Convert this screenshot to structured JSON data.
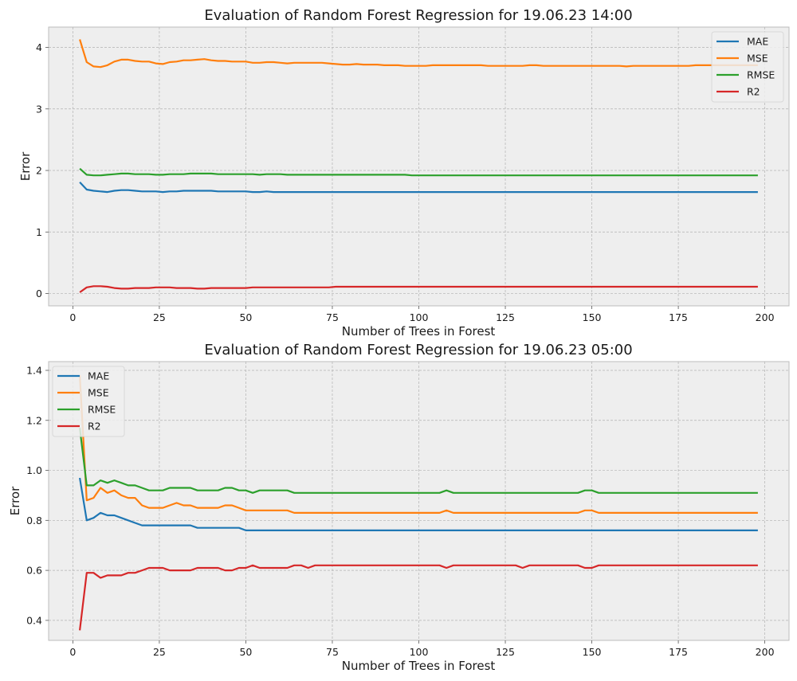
{
  "chart_data": [
    {
      "type": "line",
      "title": "Evaluation of Random Forest Regression for 19.06.23 14:00",
      "xlabel": "Number of Trees in Forest",
      "ylabel": "Error",
      "xlim": [
        -7,
        207
      ],
      "ylim": [
        -0.2,
        4.33
      ],
      "xticks": [
        0,
        25,
        50,
        75,
        100,
        125,
        150,
        175,
        200
      ],
      "yticks": [
        0,
        1,
        2,
        3,
        4
      ],
      "grid": true,
      "legend": "top-right",
      "x": [
        2,
        4,
        6,
        8,
        10,
        12,
        14,
        16,
        18,
        20,
        22,
        24,
        26,
        28,
        30,
        32,
        34,
        36,
        38,
        40,
        42,
        44,
        46,
        48,
        50,
        52,
        54,
        56,
        58,
        60,
        62,
        64,
        66,
        68,
        70,
        72,
        74,
        76,
        78,
        80,
        82,
        84,
        86,
        88,
        90,
        92,
        94,
        96,
        98,
        100,
        102,
        104,
        106,
        108,
        110,
        112,
        114,
        116,
        118,
        120,
        122,
        124,
        126,
        128,
        130,
        132,
        134,
        136,
        138,
        140,
        142,
        144,
        146,
        148,
        150,
        152,
        154,
        156,
        158,
        160,
        162,
        164,
        166,
        168,
        170,
        172,
        174,
        176,
        178,
        180,
        182,
        184,
        186,
        188,
        190,
        192,
        194,
        196,
        198
      ],
      "series": [
        {
          "name": "MAE",
          "color": "#1f77b4",
          "values": [
            1.81,
            1.69,
            1.67,
            1.66,
            1.65,
            1.67,
            1.68,
            1.68,
            1.67,
            1.66,
            1.66,
            1.66,
            1.65,
            1.66,
            1.66,
            1.67,
            1.67,
            1.67,
            1.67,
            1.67,
            1.66,
            1.66,
            1.66,
            1.66,
            1.66,
            1.65,
            1.65,
            1.66,
            1.65,
            1.65,
            1.65,
            1.65,
            1.65,
            1.65,
            1.65,
            1.65,
            1.65,
            1.65,
            1.65,
            1.65,
            1.65,
            1.65,
            1.65,
            1.65,
            1.65,
            1.65,
            1.65,
            1.65,
            1.65,
            1.65,
            1.65,
            1.65,
            1.65,
            1.65,
            1.65,
            1.65,
            1.65,
            1.65,
            1.65,
            1.65,
            1.65,
            1.65,
            1.65,
            1.65,
            1.65,
            1.65,
            1.65,
            1.65,
            1.65,
            1.65,
            1.65,
            1.65,
            1.65,
            1.65,
            1.65,
            1.65,
            1.65,
            1.65,
            1.65,
            1.65,
            1.65,
            1.65,
            1.65,
            1.65,
            1.65,
            1.65,
            1.65,
            1.65,
            1.65,
            1.65,
            1.65,
            1.65,
            1.65,
            1.65,
            1.65,
            1.65,
            1.65,
            1.65,
            1.65
          ]
        },
        {
          "name": "MSE",
          "color": "#ff7f0e",
          "values": [
            4.13,
            3.76,
            3.69,
            3.68,
            3.71,
            3.77,
            3.8,
            3.8,
            3.78,
            3.77,
            3.77,
            3.74,
            3.73,
            3.76,
            3.77,
            3.79,
            3.79,
            3.8,
            3.81,
            3.79,
            3.78,
            3.78,
            3.77,
            3.77,
            3.77,
            3.75,
            3.75,
            3.76,
            3.76,
            3.75,
            3.74,
            3.75,
            3.75,
            3.75,
            3.75,
            3.75,
            3.74,
            3.73,
            3.72,
            3.72,
            3.73,
            3.72,
            3.72,
            3.72,
            3.71,
            3.71,
            3.71,
            3.7,
            3.7,
            3.7,
            3.7,
            3.71,
            3.71,
            3.71,
            3.71,
            3.71,
            3.71,
            3.71,
            3.71,
            3.7,
            3.7,
            3.7,
            3.7,
            3.7,
            3.7,
            3.71,
            3.71,
            3.7,
            3.7,
            3.7,
            3.7,
            3.7,
            3.7,
            3.7,
            3.7,
            3.7,
            3.7,
            3.7,
            3.7,
            3.69,
            3.7,
            3.7,
            3.7,
            3.7,
            3.7,
            3.7,
            3.7,
            3.7,
            3.7,
            3.71,
            3.71,
            3.71,
            3.71,
            3.71,
            3.71,
            3.71,
            3.71,
            3.71,
            3.71
          ]
        },
        {
          "name": "RMSE",
          "color": "#2ca02c",
          "values": [
            2.03,
            1.93,
            1.92,
            1.92,
            1.93,
            1.94,
            1.95,
            1.95,
            1.94,
            1.94,
            1.94,
            1.93,
            1.93,
            1.94,
            1.94,
            1.94,
            1.95,
            1.95,
            1.95,
            1.95,
            1.94,
            1.94,
            1.94,
            1.94,
            1.94,
            1.94,
            1.93,
            1.94,
            1.94,
            1.94,
            1.93,
            1.93,
            1.93,
            1.93,
            1.93,
            1.93,
            1.93,
            1.93,
            1.93,
            1.93,
            1.93,
            1.93,
            1.93,
            1.93,
            1.93,
            1.93,
            1.93,
            1.93,
            1.92,
            1.92,
            1.92,
            1.92,
            1.92,
            1.92,
            1.92,
            1.92,
            1.92,
            1.92,
            1.92,
            1.92,
            1.92,
            1.92,
            1.92,
            1.92,
            1.92,
            1.92,
            1.92,
            1.92,
            1.92,
            1.92,
            1.92,
            1.92,
            1.92,
            1.92,
            1.92,
            1.92,
            1.92,
            1.92,
            1.92,
            1.92,
            1.92,
            1.92,
            1.92,
            1.92,
            1.92,
            1.92,
            1.92,
            1.92,
            1.92,
            1.92,
            1.92,
            1.92,
            1.92,
            1.92,
            1.92,
            1.92,
            1.92,
            1.92,
            1.92
          ]
        },
        {
          "name": "R2",
          "color": "#d62728",
          "values": [
            0.02,
            0.1,
            0.12,
            0.12,
            0.11,
            0.09,
            0.08,
            0.08,
            0.09,
            0.09,
            0.09,
            0.1,
            0.1,
            0.1,
            0.09,
            0.09,
            0.09,
            0.08,
            0.08,
            0.09,
            0.09,
            0.09,
            0.09,
            0.09,
            0.09,
            0.1,
            0.1,
            0.1,
            0.1,
            0.1,
            0.1,
            0.1,
            0.1,
            0.1,
            0.1,
            0.1,
            0.1,
            0.11,
            0.11,
            0.11,
            0.11,
            0.11,
            0.11,
            0.11,
            0.11,
            0.11,
            0.11,
            0.11,
            0.11,
            0.11,
            0.11,
            0.11,
            0.11,
            0.11,
            0.11,
            0.11,
            0.11,
            0.11,
            0.11,
            0.11,
            0.11,
            0.11,
            0.11,
            0.11,
            0.11,
            0.11,
            0.11,
            0.11,
            0.11,
            0.11,
            0.11,
            0.11,
            0.11,
            0.11,
            0.11,
            0.11,
            0.11,
            0.11,
            0.11,
            0.11,
            0.11,
            0.11,
            0.11,
            0.11,
            0.11,
            0.11,
            0.11,
            0.11,
            0.11,
            0.11,
            0.11,
            0.11,
            0.11,
            0.11,
            0.11,
            0.11,
            0.11,
            0.11,
            0.11
          ]
        }
      ]
    },
    {
      "type": "line",
      "title": "Evaluation of Random Forest Regression for 19.06.23 05:00",
      "xlabel": "Number of Trees in Forest",
      "ylabel": "Error",
      "xlim": [
        -7,
        207
      ],
      "ylim": [
        0.32,
        1.435
      ],
      "xticks": [
        0,
        25,
        50,
        75,
        100,
        125,
        150,
        175,
        200
      ],
      "yticks": [
        0.4,
        0.6,
        0.8,
        1.0,
        1.2,
        1.4
      ],
      "ytickLabels": [
        "0.4",
        "0.6",
        "0.8",
        "1.0",
        "1.2",
        "1.4"
      ],
      "grid": true,
      "legend": "top-left",
      "x": [
        2,
        4,
        6,
        8,
        10,
        12,
        14,
        16,
        18,
        20,
        22,
        24,
        26,
        28,
        30,
        32,
        34,
        36,
        38,
        40,
        42,
        44,
        46,
        48,
        50,
        52,
        54,
        56,
        58,
        60,
        62,
        64,
        66,
        68,
        70,
        72,
        74,
        76,
        78,
        80,
        82,
        84,
        86,
        88,
        90,
        92,
        94,
        96,
        98,
        100,
        102,
        104,
        106,
        108,
        110,
        112,
        114,
        116,
        118,
        120,
        122,
        124,
        126,
        128,
        130,
        132,
        134,
        136,
        138,
        140,
        142,
        144,
        146,
        148,
        150,
        152,
        154,
        156,
        158,
        160,
        162,
        164,
        166,
        168,
        170,
        172,
        174,
        176,
        178,
        180,
        182,
        184,
        186,
        188,
        190,
        192,
        194,
        196,
        198
      ],
      "series": [
        {
          "name": "MAE",
          "color": "#1f77b4",
          "values": [
            0.97,
            0.8,
            0.81,
            0.83,
            0.82,
            0.82,
            0.81,
            0.8,
            0.79,
            0.78,
            0.78,
            0.78,
            0.78,
            0.78,
            0.78,
            0.78,
            0.78,
            0.77,
            0.77,
            0.77,
            0.77,
            0.77,
            0.77,
            0.77,
            0.76,
            0.76,
            0.76,
            0.76,
            0.76,
            0.76,
            0.76,
            0.76,
            0.76,
            0.76,
            0.76,
            0.76,
            0.76,
            0.76,
            0.76,
            0.76,
            0.76,
            0.76,
            0.76,
            0.76,
            0.76,
            0.76,
            0.76,
            0.76,
            0.76,
            0.76,
            0.76,
            0.76,
            0.76,
            0.76,
            0.76,
            0.76,
            0.76,
            0.76,
            0.76,
            0.76,
            0.76,
            0.76,
            0.76,
            0.76,
            0.76,
            0.76,
            0.76,
            0.76,
            0.76,
            0.76,
            0.76,
            0.76,
            0.76,
            0.76,
            0.76,
            0.76,
            0.76,
            0.76,
            0.76,
            0.76,
            0.76,
            0.76,
            0.76,
            0.76,
            0.76,
            0.76,
            0.76,
            0.76,
            0.76,
            0.76,
            0.76,
            0.76,
            0.76,
            0.76,
            0.76,
            0.76,
            0.76,
            0.76,
            0.76
          ]
        },
        {
          "name": "MSE",
          "color": "#ff7f0e",
          "values": [
            1.38,
            0.88,
            0.89,
            0.93,
            0.91,
            0.92,
            0.9,
            0.89,
            0.89,
            0.86,
            0.85,
            0.85,
            0.85,
            0.86,
            0.87,
            0.86,
            0.86,
            0.85,
            0.85,
            0.85,
            0.85,
            0.86,
            0.86,
            0.85,
            0.84,
            0.84,
            0.84,
            0.84,
            0.84,
            0.84,
            0.84,
            0.83,
            0.83,
            0.83,
            0.83,
            0.83,
            0.83,
            0.83,
            0.83,
            0.83,
            0.83,
            0.83,
            0.83,
            0.83,
            0.83,
            0.83,
            0.83,
            0.83,
            0.83,
            0.83,
            0.83,
            0.83,
            0.83,
            0.84,
            0.83,
            0.83,
            0.83,
            0.83,
            0.83,
            0.83,
            0.83,
            0.83,
            0.83,
            0.83,
            0.83,
            0.83,
            0.83,
            0.83,
            0.83,
            0.83,
            0.83,
            0.83,
            0.83,
            0.84,
            0.84,
            0.83,
            0.83,
            0.83,
            0.83,
            0.83,
            0.83,
            0.83,
            0.83,
            0.83,
            0.83,
            0.83,
            0.83,
            0.83,
            0.83,
            0.83,
            0.83,
            0.83,
            0.83,
            0.83,
            0.83,
            0.83,
            0.83,
            0.83,
            0.83
          ]
        },
        {
          "name": "RMSE",
          "color": "#2ca02c",
          "values": [
            1.17,
            0.94,
            0.94,
            0.96,
            0.95,
            0.96,
            0.95,
            0.94,
            0.94,
            0.93,
            0.92,
            0.92,
            0.92,
            0.93,
            0.93,
            0.93,
            0.93,
            0.92,
            0.92,
            0.92,
            0.92,
            0.93,
            0.93,
            0.92,
            0.92,
            0.91,
            0.92,
            0.92,
            0.92,
            0.92,
            0.92,
            0.91,
            0.91,
            0.91,
            0.91,
            0.91,
            0.91,
            0.91,
            0.91,
            0.91,
            0.91,
            0.91,
            0.91,
            0.91,
            0.91,
            0.91,
            0.91,
            0.91,
            0.91,
            0.91,
            0.91,
            0.91,
            0.91,
            0.92,
            0.91,
            0.91,
            0.91,
            0.91,
            0.91,
            0.91,
            0.91,
            0.91,
            0.91,
            0.91,
            0.91,
            0.91,
            0.91,
            0.91,
            0.91,
            0.91,
            0.91,
            0.91,
            0.91,
            0.92,
            0.92,
            0.91,
            0.91,
            0.91,
            0.91,
            0.91,
            0.91,
            0.91,
            0.91,
            0.91,
            0.91,
            0.91,
            0.91,
            0.91,
            0.91,
            0.91,
            0.91,
            0.91,
            0.91,
            0.91,
            0.91,
            0.91,
            0.91,
            0.91,
            0.91
          ]
        },
        {
          "name": "R2",
          "color": "#d62728",
          "values": [
            0.36,
            0.59,
            0.59,
            0.57,
            0.58,
            0.58,
            0.58,
            0.59,
            0.59,
            0.6,
            0.61,
            0.61,
            0.61,
            0.6,
            0.6,
            0.6,
            0.6,
            0.61,
            0.61,
            0.61,
            0.61,
            0.6,
            0.6,
            0.61,
            0.61,
            0.62,
            0.61,
            0.61,
            0.61,
            0.61,
            0.61,
            0.62,
            0.62,
            0.61,
            0.62,
            0.62,
            0.62,
            0.62,
            0.62,
            0.62,
            0.62,
            0.62,
            0.62,
            0.62,
            0.62,
            0.62,
            0.62,
            0.62,
            0.62,
            0.62,
            0.62,
            0.62,
            0.62,
            0.61,
            0.62,
            0.62,
            0.62,
            0.62,
            0.62,
            0.62,
            0.62,
            0.62,
            0.62,
            0.62,
            0.61,
            0.62,
            0.62,
            0.62,
            0.62,
            0.62,
            0.62,
            0.62,
            0.62,
            0.61,
            0.61,
            0.62,
            0.62,
            0.62,
            0.62,
            0.62,
            0.62,
            0.62,
            0.62,
            0.62,
            0.62,
            0.62,
            0.62,
            0.62,
            0.62,
            0.62,
            0.62,
            0.62,
            0.62,
            0.62,
            0.62,
            0.62,
            0.62,
            0.62,
            0.62
          ]
        }
      ]
    }
  ]
}
